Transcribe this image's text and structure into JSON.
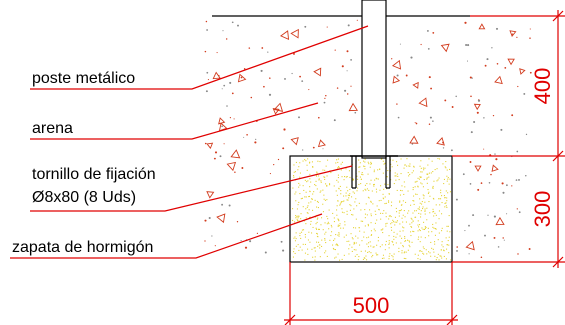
{
  "labels": {
    "post": "poste metálico",
    "sand": "arena",
    "bolt_line1": "tornillo de fijación",
    "bolt_line2": "Ø8x80 (8 Uds)",
    "footing": "zapata de hormigón"
  },
  "dimensions": {
    "sand_depth": "400",
    "footing_height": "300",
    "footing_width": "500"
  },
  "colors": {
    "annotation_red": "#e00000",
    "outline_black": "#000000",
    "sand_speckle_red": "#d23c1e",
    "sand_speckle_grey": "#888888",
    "concrete_speckle": "#e6d43a"
  }
}
